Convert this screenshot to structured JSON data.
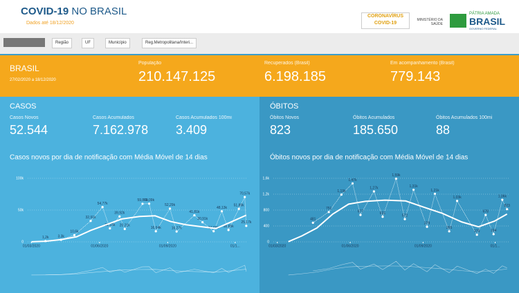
{
  "header": {
    "title": "COVID-19",
    "title_suffix": "NO BRASIL",
    "subtitle": "Dados até 18/12/2020",
    "logos": {
      "coronavirus": "CORONAVÍRUS",
      "covid": "COVID-19",
      "ministry": "MINISTÉRIO DA",
      "ministry2": "SAÚDE",
      "patria": "PÁTRIA AMADA",
      "brasil": "BRASIL",
      "gov": "GOVERNO FEDERAL"
    }
  },
  "filters": [
    "Região",
    "UF",
    "Município",
    "Reg.Metropolitana/Interi..."
  ],
  "summary": {
    "region": "BRASIL",
    "period": "27/02/2020 a 18/12/2020",
    "stats": [
      {
        "label": "População",
        "value": "210.147.125"
      },
      {
        "label": "Recuperados (Brasil)",
        "value": "6.198.185"
      },
      {
        "label": "Em acompanhamento (Brasil)",
        "value": "779.143"
      }
    ]
  },
  "cases": {
    "heading": "CASOS",
    "stats": [
      {
        "label": "Casos Novos",
        "value": "52.544"
      },
      {
        "label": "Casos Acumulados",
        "value": "7.162.978"
      },
      {
        "label": "Casos Acumulados 100mi",
        "value": "3.409"
      }
    ]
  },
  "deaths": {
    "heading": "ÓBITOS",
    "stats": [
      {
        "label": "Óbitos Novos",
        "value": "823"
      },
      {
        "label": "Óbitos Acumulados",
        "value": "185.650"
      },
      {
        "label": "Óbitos Acumulados 100mi",
        "value": "88"
      }
    ]
  },
  "chart_data": [
    {
      "type": "line",
      "title": "Casos novos por dia de notificação com Média Móvel de 14 dias",
      "xlim": [
        "2020-02-25",
        "2020-12-18"
      ],
      "xticks": [
        {
          "value": "2020-03-01",
          "label": "01/03/2020"
        },
        {
          "value": "2020-06-01",
          "label": "01/06/2020"
        },
        {
          "value": "2020-09-01",
          "label": "01/09/2020"
        },
        {
          "value": "2020-12-01",
          "label": "01/1..."
        }
      ],
      "ylim": [
        0,
        100000
      ],
      "yticks": [
        0,
        {
          "value": 50000,
          "label": "50k"
        },
        {
          "value": 100000,
          "label": "100k"
        }
      ],
      "series": [
        {
          "color": "#ffffff",
          "x": [
            "2020-03-20",
            "2020-04-10",
            "2020-04-28",
            "2020-05-20",
            "2020-06-05",
            "2020-06-15",
            "2020-06-28",
            "2020-07-05",
            "2020-07-29",
            "2020-08-07",
            "2020-08-16",
            "2020-09-04",
            "2020-09-13",
            "2020-10-07",
            "2020-10-18",
            "2020-11-02",
            "2020-11-13",
            "2020-11-22",
            "2020-12-06",
            "2020-12-14",
            "2020-12-16"
          ],
          "values": [
            1200,
            3300,
            10600,
            32910,
            54770,
            21230,
            39920,
            20210,
            59870,
            60090,
            16640,
            52290,
            16270,
            41810,
            30910,
            16650,
            48130,
            18650,
            51890,
            70570,
            25170
          ],
          "value_labels": [
            "1,2k",
            "3,3k",
            "10,6k",
            "32,91k",
            "54,77k",
            "21,23k",
            "39,92k",
            "20,21k",
            "59,87k",
            "60,09k",
            "16,64k",
            "52,29k",
            "16,27k",
            "41,81k",
            "30,91k",
            "16,65k",
            "48,13k",
            "18,65k",
            "51,89k",
            "70,57k",
            "25,17k"
          ]
        },
        {
          "color": "#ffffff",
          "x": [
            "2020-03-01",
            "2020-03-20",
            "2020-04-10",
            "2020-05-01",
            "2020-05-20",
            "2020-06-10",
            "2020-07-01",
            "2020-07-25",
            "2020-08-15",
            "2020-09-05",
            "2020-09-25",
            "2020-10-15",
            "2020-11-05",
            "2020-11-25",
            "2020-12-16"
          ],
          "values": [
            200,
            1000,
            3500,
            8000,
            18000,
            27000,
            36000,
            40000,
            41000,
            32000,
            27000,
            24000,
            21000,
            31000,
            42000
          ]
        }
      ]
    },
    {
      "type": "line",
      "title": "Óbitos novos por dia de notificação com Média Móvel de 14 dias",
      "xlim": [
        "2020-02-25",
        "2020-12-18"
      ],
      "xticks": [
        {
          "value": "2020-03-01",
          "label": "01/03/2020"
        },
        {
          "value": "2020-06-01",
          "label": "01/06/2020"
        },
        {
          "value": "2020-09-01",
          "label": "01/09/2020"
        },
        {
          "value": "2020-12-01",
          "label": "01/1..."
        }
      ],
      "ylim": [
        0,
        1600
      ],
      "yticks": [
        0,
        400,
        800,
        {
          "value": 1200,
          "label": "1,2k"
        },
        {
          "value": 1600,
          "label": "1,6k"
        }
      ],
      "series": [
        {
          "color": "#ffffff",
          "x": [
            "2020-04-15",
            "2020-05-05",
            "2020-05-21",
            "2020-06-04",
            "2020-06-14",
            "2020-07-01",
            "2020-07-12",
            "2020-07-29",
            "2020-08-09",
            "2020-08-20",
            "2020-09-06",
            "2020-09-16",
            "2020-10-04",
            "2020-10-14",
            "2020-11-08",
            "2020-11-19",
            "2020-11-29",
            "2020-12-10",
            "2020-12-16"
          ],
          "values": [
            481,
            751,
            1190,
            1470,
            677,
            1270,
            631,
            1590,
            572,
            1310,
            379,
            1210,
            265,
            1030,
            179,
            678,
            194,
            1060,
            823
          ],
          "value_labels": [
            "481",
            "751",
            "1,19k",
            "1,47k",
            "677",
            "1,27k",
            "631",
            "1,59k",
            "572",
            "1,31k",
            "379",
            "1,21k",
            "265",
            "1,03k",
            "179",
            "678",
            "194",
            "1,06k",
            "823"
          ]
        },
        {
          "color": "#ffffff",
          "x": [
            "2020-03-15",
            "2020-04-01",
            "2020-04-20",
            "2020-05-10",
            "2020-05-30",
            "2020-06-20",
            "2020-07-15",
            "2020-08-10",
            "2020-09-01",
            "2020-09-25",
            "2020-10-20",
            "2020-11-10",
            "2020-11-30",
            "2020-12-16"
          ],
          "values": [
            5,
            150,
            350,
            700,
            950,
            1020,
            1050,
            1030,
            880,
            720,
            500,
            380,
            520,
            700
          ]
        }
      ]
    }
  ]
}
